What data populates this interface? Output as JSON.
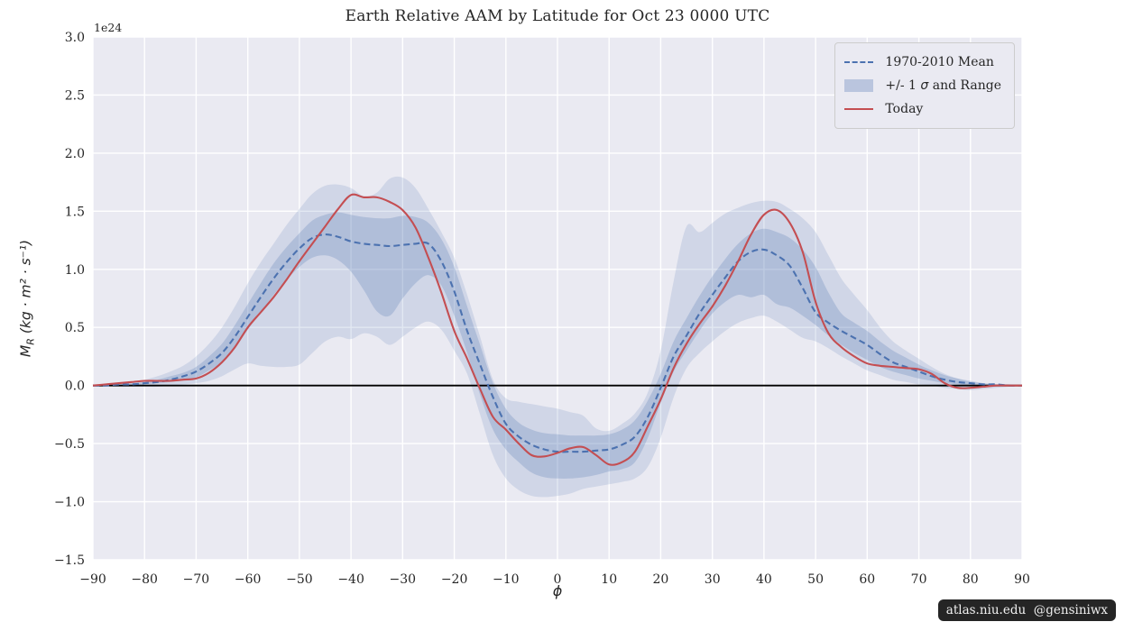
{
  "figure": {
    "title": "Earth Relative AAM by Latitude for Oct 23 0000 UTC",
    "offset_label": "1e24",
    "xlabel": "ϕ",
    "ylabel": {
      "var": "M",
      "sub": "R",
      "units": " (kg · m² · s⁻¹)"
    }
  },
  "legend": {
    "mean_label": "1970-2010 Mean",
    "sigma_label_pre": "+/- 1 ",
    "sigma_symbol": "σ",
    "sigma_label_post": " and Range",
    "today_label": "Today"
  },
  "watermark": {
    "text": "atlas.niu.edu  @gensiniwx"
  },
  "colors": {
    "axes_background": "#eaeaf2",
    "grid": "#ffffff",
    "mean_line": "#4c72b0",
    "today_line": "#c44e52",
    "band_fill": "rgba(76,114,176,0.16)",
    "sigma_fill": "rgba(76,114,176,0.24)",
    "zero_line": "#000000",
    "text": "#262626"
  },
  "chart_data": {
    "type": "line",
    "title": "Earth Relative AAM by Latitude for Oct 23 0000 UTC",
    "xlabel": "phi (latitude, degrees)",
    "ylabel": "M_R (kg·m²·s⁻¹), offset factor 1e24",
    "xlim": [
      -90,
      90
    ],
    "ylim": [
      -1.5,
      3.0
    ],
    "grid": true,
    "legend_position": "upper right",
    "xtick_values": [
      -90,
      -80,
      -70,
      -60,
      -50,
      -40,
      -30,
      -20,
      -10,
      0,
      10,
      20,
      30,
      40,
      50,
      60,
      70,
      80,
      90
    ],
    "xtick_labels": [
      "−90",
      "−80",
      "−70",
      "−60",
      "−50",
      "−40",
      "−30",
      "−20",
      "−10",
      "0",
      "10",
      "20",
      "30",
      "40",
      "50",
      "60",
      "70",
      "80",
      "90"
    ],
    "ytick_values": [
      -1.5,
      -1.0,
      -0.5,
      0.0,
      0.5,
      1.0,
      1.5,
      2.0,
      2.5,
      3.0
    ],
    "ytick_labels": [
      "−1.5",
      "−1.0",
      "−0.5",
      "0.0",
      "0.5",
      "1.0",
      "1.5",
      "2.0",
      "2.5",
      "3.0"
    ],
    "x": [
      -90,
      -87.5,
      -85,
      -82.5,
      -80,
      -77.5,
      -75,
      -72.5,
      -70,
      -67.5,
      -65,
      -62.5,
      -60,
      -57.5,
      -55,
      -52.5,
      -50,
      -47.5,
      -45,
      -42.5,
      -40,
      -37.5,
      -35,
      -32.5,
      -30,
      -27.5,
      -25,
      -22.5,
      -20,
      -17.5,
      -15,
      -12.5,
      -10,
      -7.5,
      -5,
      -2.5,
      0,
      2.5,
      5,
      7.5,
      10,
      12.5,
      15,
      17.5,
      20,
      22.5,
      25,
      27.5,
      30,
      32.5,
      35,
      37.5,
      40,
      42.5,
      45,
      47.5,
      50,
      52.5,
      55,
      57.5,
      60,
      62.5,
      65,
      67.5,
      70,
      72.5,
      75,
      77.5,
      80,
      82.5,
      85,
      87.5,
      90
    ],
    "series": [
      {
        "name": "1970-2010 Mean",
        "style": "dashed",
        "color": "#4c72b0",
        "values": [
          0.0,
          0.0,
          0.01,
          0.01,
          0.02,
          0.03,
          0.05,
          0.08,
          0.12,
          0.19,
          0.28,
          0.42,
          0.59,
          0.76,
          0.92,
          1.06,
          1.18,
          1.27,
          1.3,
          1.28,
          1.24,
          1.22,
          1.21,
          1.2,
          1.21,
          1.22,
          1.22,
          1.07,
          0.81,
          0.47,
          0.18,
          -0.1,
          -0.33,
          -0.44,
          -0.51,
          -0.55,
          -0.57,
          -0.57,
          -0.57,
          -0.56,
          -0.55,
          -0.51,
          -0.44,
          -0.27,
          -0.02,
          0.25,
          0.43,
          0.62,
          0.78,
          0.93,
          1.07,
          1.15,
          1.17,
          1.12,
          1.03,
          0.84,
          0.63,
          0.54,
          0.47,
          0.41,
          0.35,
          0.27,
          0.2,
          0.16,
          0.12,
          0.08,
          0.05,
          0.03,
          0.02,
          0.01,
          0.01,
          0.0,
          0.0
        ]
      },
      {
        "name": "Today",
        "style": "solid",
        "color": "#c44e52",
        "values": [
          0.0,
          0.01,
          0.02,
          0.03,
          0.04,
          0.04,
          0.04,
          0.05,
          0.06,
          0.11,
          0.2,
          0.33,
          0.5,
          0.63,
          0.76,
          0.91,
          1.07,
          1.22,
          1.37,
          1.52,
          1.64,
          1.62,
          1.62,
          1.58,
          1.51,
          1.36,
          1.1,
          0.8,
          0.47,
          0.23,
          -0.03,
          -0.27,
          -0.38,
          -0.5,
          -0.6,
          -0.61,
          -0.58,
          -0.54,
          -0.53,
          -0.6,
          -0.68,
          -0.66,
          -0.57,
          -0.35,
          -0.12,
          0.15,
          0.36,
          0.53,
          0.68,
          0.86,
          1.07,
          1.3,
          1.47,
          1.51,
          1.4,
          1.15,
          0.72,
          0.45,
          0.33,
          0.25,
          0.19,
          0.17,
          0.16,
          0.15,
          0.14,
          0.1,
          0.02,
          -0.02,
          -0.02,
          -0.01,
          0.0,
          0.0,
          0.0
        ]
      }
    ],
    "bands": [
      {
        "name": "Range",
        "upper": [
          0.01,
          0.01,
          0.02,
          0.03,
          0.05,
          0.08,
          0.12,
          0.17,
          0.25,
          0.36,
          0.5,
          0.68,
          0.88,
          1.06,
          1.22,
          1.38,
          1.52,
          1.65,
          1.72,
          1.73,
          1.7,
          1.63,
          1.66,
          1.78,
          1.79,
          1.7,
          1.52,
          1.32,
          1.1,
          0.78,
          0.42,
          0.05,
          -0.11,
          -0.14,
          -0.16,
          -0.18,
          -0.2,
          -0.23,
          -0.26,
          -0.37,
          -0.39,
          -0.33,
          -0.24,
          -0.06,
          0.3,
          0.9,
          1.37,
          1.32,
          1.4,
          1.48,
          1.53,
          1.57,
          1.59,
          1.58,
          1.52,
          1.44,
          1.32,
          1.12,
          0.92,
          0.78,
          0.65,
          0.5,
          0.38,
          0.3,
          0.23,
          0.16,
          0.1,
          0.06,
          0.03,
          0.02,
          0.01,
          0.01,
          0.0
        ],
        "lower": [
          0.0,
          0.0,
          -0.01,
          -0.01,
          -0.01,
          -0.01,
          0.0,
          0.01,
          0.02,
          0.04,
          0.08,
          0.14,
          0.19,
          0.17,
          0.16,
          0.16,
          0.18,
          0.28,
          0.38,
          0.42,
          0.4,
          0.45,
          0.42,
          0.35,
          0.42,
          0.5,
          0.55,
          0.48,
          0.3,
          0.1,
          -0.25,
          -0.6,
          -0.8,
          -0.9,
          -0.95,
          -0.96,
          -0.95,
          -0.93,
          -0.89,
          -0.87,
          -0.85,
          -0.83,
          -0.8,
          -0.7,
          -0.45,
          -0.1,
          0.15,
          0.28,
          0.38,
          0.47,
          0.54,
          0.58,
          0.6,
          0.55,
          0.48,
          0.41,
          0.38,
          0.32,
          0.25,
          0.19,
          0.13,
          0.09,
          0.05,
          0.03,
          0.01,
          0.0,
          -0.02,
          -0.03,
          -0.04,
          -0.03,
          -0.02,
          -0.01,
          0.0
        ]
      },
      {
        "name": "+/- 1 sigma",
        "upper": [
          0.0,
          0.01,
          0.01,
          0.02,
          0.03,
          0.05,
          0.08,
          0.11,
          0.16,
          0.25,
          0.36,
          0.52,
          0.7,
          0.88,
          1.05,
          1.19,
          1.31,
          1.42,
          1.47,
          1.49,
          1.47,
          1.45,
          1.44,
          1.44,
          1.46,
          1.45,
          1.4,
          1.26,
          1.02,
          0.68,
          0.35,
          0.02,
          -0.2,
          -0.32,
          -0.38,
          -0.41,
          -0.42,
          -0.43,
          -0.43,
          -0.43,
          -0.42,
          -0.38,
          -0.3,
          -0.13,
          0.1,
          0.38,
          0.58,
          0.77,
          0.94,
          1.09,
          1.22,
          1.31,
          1.35,
          1.32,
          1.27,
          1.17,
          1.02,
          0.8,
          0.62,
          0.54,
          0.47,
          0.38,
          0.3,
          0.24,
          0.18,
          0.13,
          0.09,
          0.06,
          0.04,
          0.02,
          0.01,
          0.01,
          0.0
        ],
        "lower": [
          0.0,
          0.0,
          0.0,
          0.0,
          0.01,
          0.02,
          0.03,
          0.05,
          0.07,
          0.13,
          0.2,
          0.32,
          0.48,
          0.63,
          0.78,
          0.91,
          1.02,
          1.1,
          1.12,
          1.08,
          0.98,
          0.82,
          0.64,
          0.6,
          0.75,
          0.88,
          0.95,
          0.86,
          0.6,
          0.28,
          -0.08,
          -0.38,
          -0.55,
          -0.66,
          -0.75,
          -0.79,
          -0.8,
          -0.8,
          -0.79,
          -0.77,
          -0.74,
          -0.72,
          -0.66,
          -0.45,
          -0.15,
          0.12,
          0.3,
          0.47,
          0.62,
          0.72,
          0.78,
          0.76,
          0.78,
          0.7,
          0.67,
          0.6,
          0.52,
          0.43,
          0.35,
          0.28,
          0.22,
          0.16,
          0.12,
          0.09,
          0.06,
          0.04,
          0.02,
          0.01,
          0.0,
          0.0,
          0.0,
          0.0,
          0.0
        ]
      }
    ],
    "zero_line": {
      "y": 0.0
    }
  }
}
